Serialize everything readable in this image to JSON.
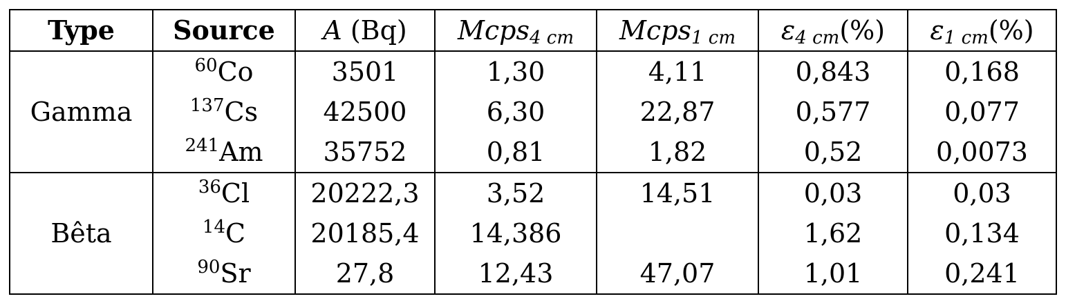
{
  "table": {
    "headers": {
      "type": "Type",
      "source": "Source",
      "activity": {
        "symbol": "A",
        "unit": "(Bq)"
      },
      "mcps_4cm": {
        "symbol": "Mcps",
        "sub": "4 cm"
      },
      "mcps_1cm": {
        "symbol": "Mcps",
        "sub": "1 cm"
      },
      "eff_4cm": {
        "symbol": "ε",
        "sub": "4 cm",
        "unit": "(%)"
      },
      "eff_1cm": {
        "symbol": "ε",
        "sub": "1 cm",
        "unit": "(%)"
      }
    },
    "groups": [
      {
        "type": "Gamma",
        "rows": [
          {
            "mass": "60",
            "element": "Co",
            "activity": "3501",
            "mcps_4cm": "1,30",
            "mcps_1cm": "4,11",
            "eff_4cm": "0,843",
            "eff_1cm": "0,168"
          },
          {
            "mass": "137",
            "element": "Cs",
            "activity": "42500",
            "mcps_4cm": "6,30",
            "mcps_1cm": "22,87",
            "eff_4cm": "0,577",
            "eff_1cm": "0,077"
          },
          {
            "mass": "241",
            "element": "Am",
            "activity": "35752",
            "mcps_4cm": "0,81",
            "mcps_1cm": "1,82",
            "eff_4cm": "0,52",
            "eff_1cm": "0,0073"
          }
        ]
      },
      {
        "type": "Bêta",
        "rows": [
          {
            "mass": "36",
            "element": "Cl",
            "activity": "20222,3",
            "mcps_4cm": "3,52",
            "mcps_1cm": "14,51",
            "eff_4cm": "0,03",
            "eff_1cm": "0,03"
          },
          {
            "mass": "14",
            "element": "C",
            "activity": "20185,4",
            "mcps_4cm": "14,386",
            "mcps_1cm": "",
            "eff_4cm": "1,62",
            "eff_1cm": "0,134"
          },
          {
            "mass": "90",
            "element": "Sr",
            "activity": "27,8",
            "mcps_4cm": "12,43",
            "mcps_1cm": "47,07",
            "eff_4cm": "1,01",
            "eff_1cm": "0,241"
          }
        ]
      }
    ]
  }
}
